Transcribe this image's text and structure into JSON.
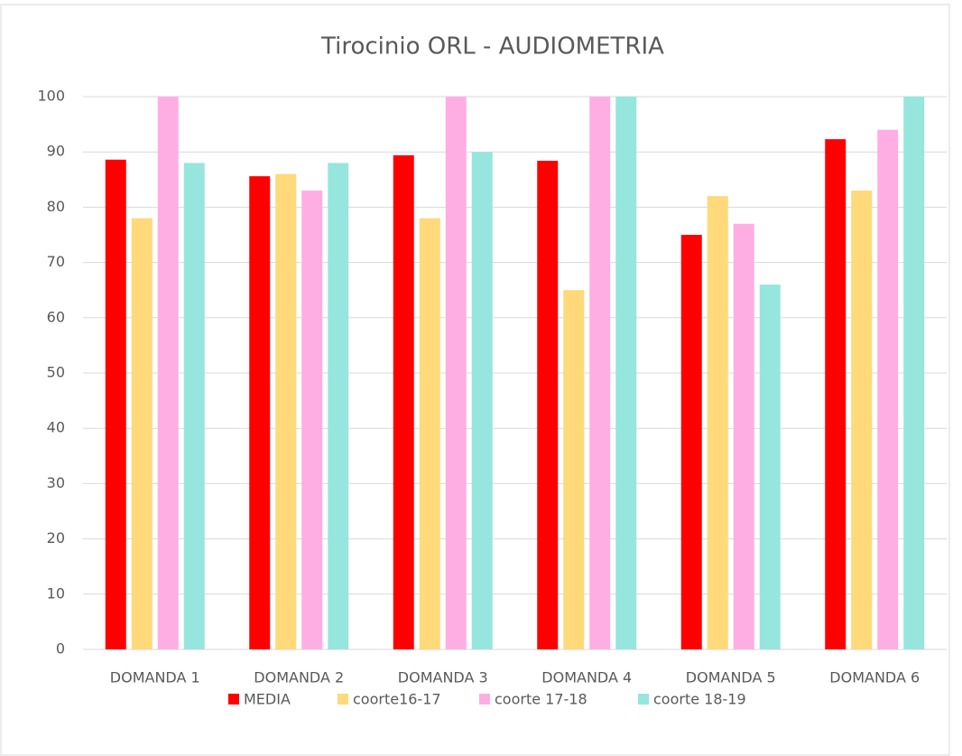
{
  "chart_data": {
    "type": "bar",
    "title": "Tirocinio ORL - AUDIOMETRIA",
    "categories": [
      "DOMANDA 1",
      "DOMANDA 2",
      "DOMANDA 3",
      "DOMANDA 4",
      "DOMANDA 5",
      "DOMANDA 6"
    ],
    "series": [
      {
        "name": "MEDIA",
        "color": "#ff0000",
        "values": [
          88.6,
          85.6,
          89.4,
          88.4,
          75,
          92.3
        ]
      },
      {
        "name": "coorte16-17",
        "color": "#ffd97a",
        "values": [
          78,
          86,
          78,
          65,
          82,
          83
        ]
      },
      {
        "name": "coorte 17-18",
        "color": "#ffaee3",
        "values": [
          100,
          83,
          100,
          100,
          77,
          94
        ]
      },
      {
        "name": "coorte 18-19",
        "color": "#96e6de",
        "values": [
          88,
          88,
          90,
          100,
          66,
          100
        ]
      }
    ],
    "ylim": [
      0,
      100
    ],
    "yticks": [
      0,
      10,
      20,
      30,
      40,
      50,
      60,
      70,
      80,
      90,
      100
    ],
    "grid": true,
    "legend": "bottom"
  }
}
